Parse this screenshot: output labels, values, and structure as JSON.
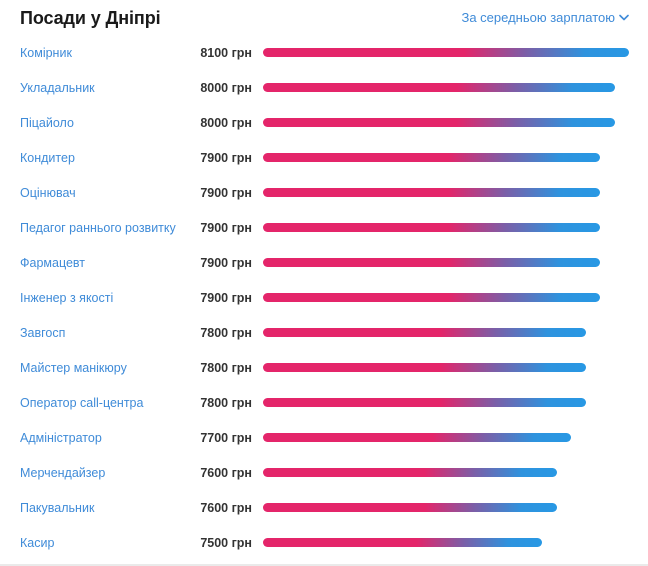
{
  "header": {
    "title": "Посади у Дніпрі",
    "sort_label": "За середньою зарплатою"
  },
  "max_salary": 8100,
  "colors": {
    "link": "#3f8bd8",
    "bar_start": "#e4256a",
    "bar_end": "#2898e4"
  },
  "positions": [
    {
      "name": "Комірник",
      "salary": 8100,
      "salary_label": "8100 грн"
    },
    {
      "name": "Укладальник",
      "salary": 8000,
      "salary_label": "8000 грн"
    },
    {
      "name": "Піцайоло",
      "salary": 8000,
      "salary_label": "8000 грн"
    },
    {
      "name": "Кондитер",
      "salary": 7900,
      "salary_label": "7900 грн"
    },
    {
      "name": "Оцінювач",
      "salary": 7900,
      "salary_label": "7900 грн"
    },
    {
      "name": "Педагог раннього розвитку",
      "salary": 7900,
      "salary_label": "7900 грн"
    },
    {
      "name": "Фармацевт",
      "salary": 7900,
      "salary_label": "7900 грн"
    },
    {
      "name": "Інженер з якості",
      "salary": 7900,
      "salary_label": "7900 грн"
    },
    {
      "name": "Завгосп",
      "salary": 7800,
      "salary_label": "7800 грн"
    },
    {
      "name": "Майстер манікюру",
      "salary": 7800,
      "salary_label": "7800 грн"
    },
    {
      "name": "Оператор call-центра",
      "salary": 7800,
      "salary_label": "7800 грн"
    },
    {
      "name": "Адміністратор",
      "salary": 7700,
      "salary_label": "7700 грн"
    },
    {
      "name": "Мерчендайзер",
      "salary": 7600,
      "salary_label": "7600 грн"
    },
    {
      "name": "Пакувальник",
      "salary": 7600,
      "salary_label": "7600 грн"
    },
    {
      "name": "Касир",
      "salary": 7500,
      "salary_label": "7500 грн"
    }
  ]
}
